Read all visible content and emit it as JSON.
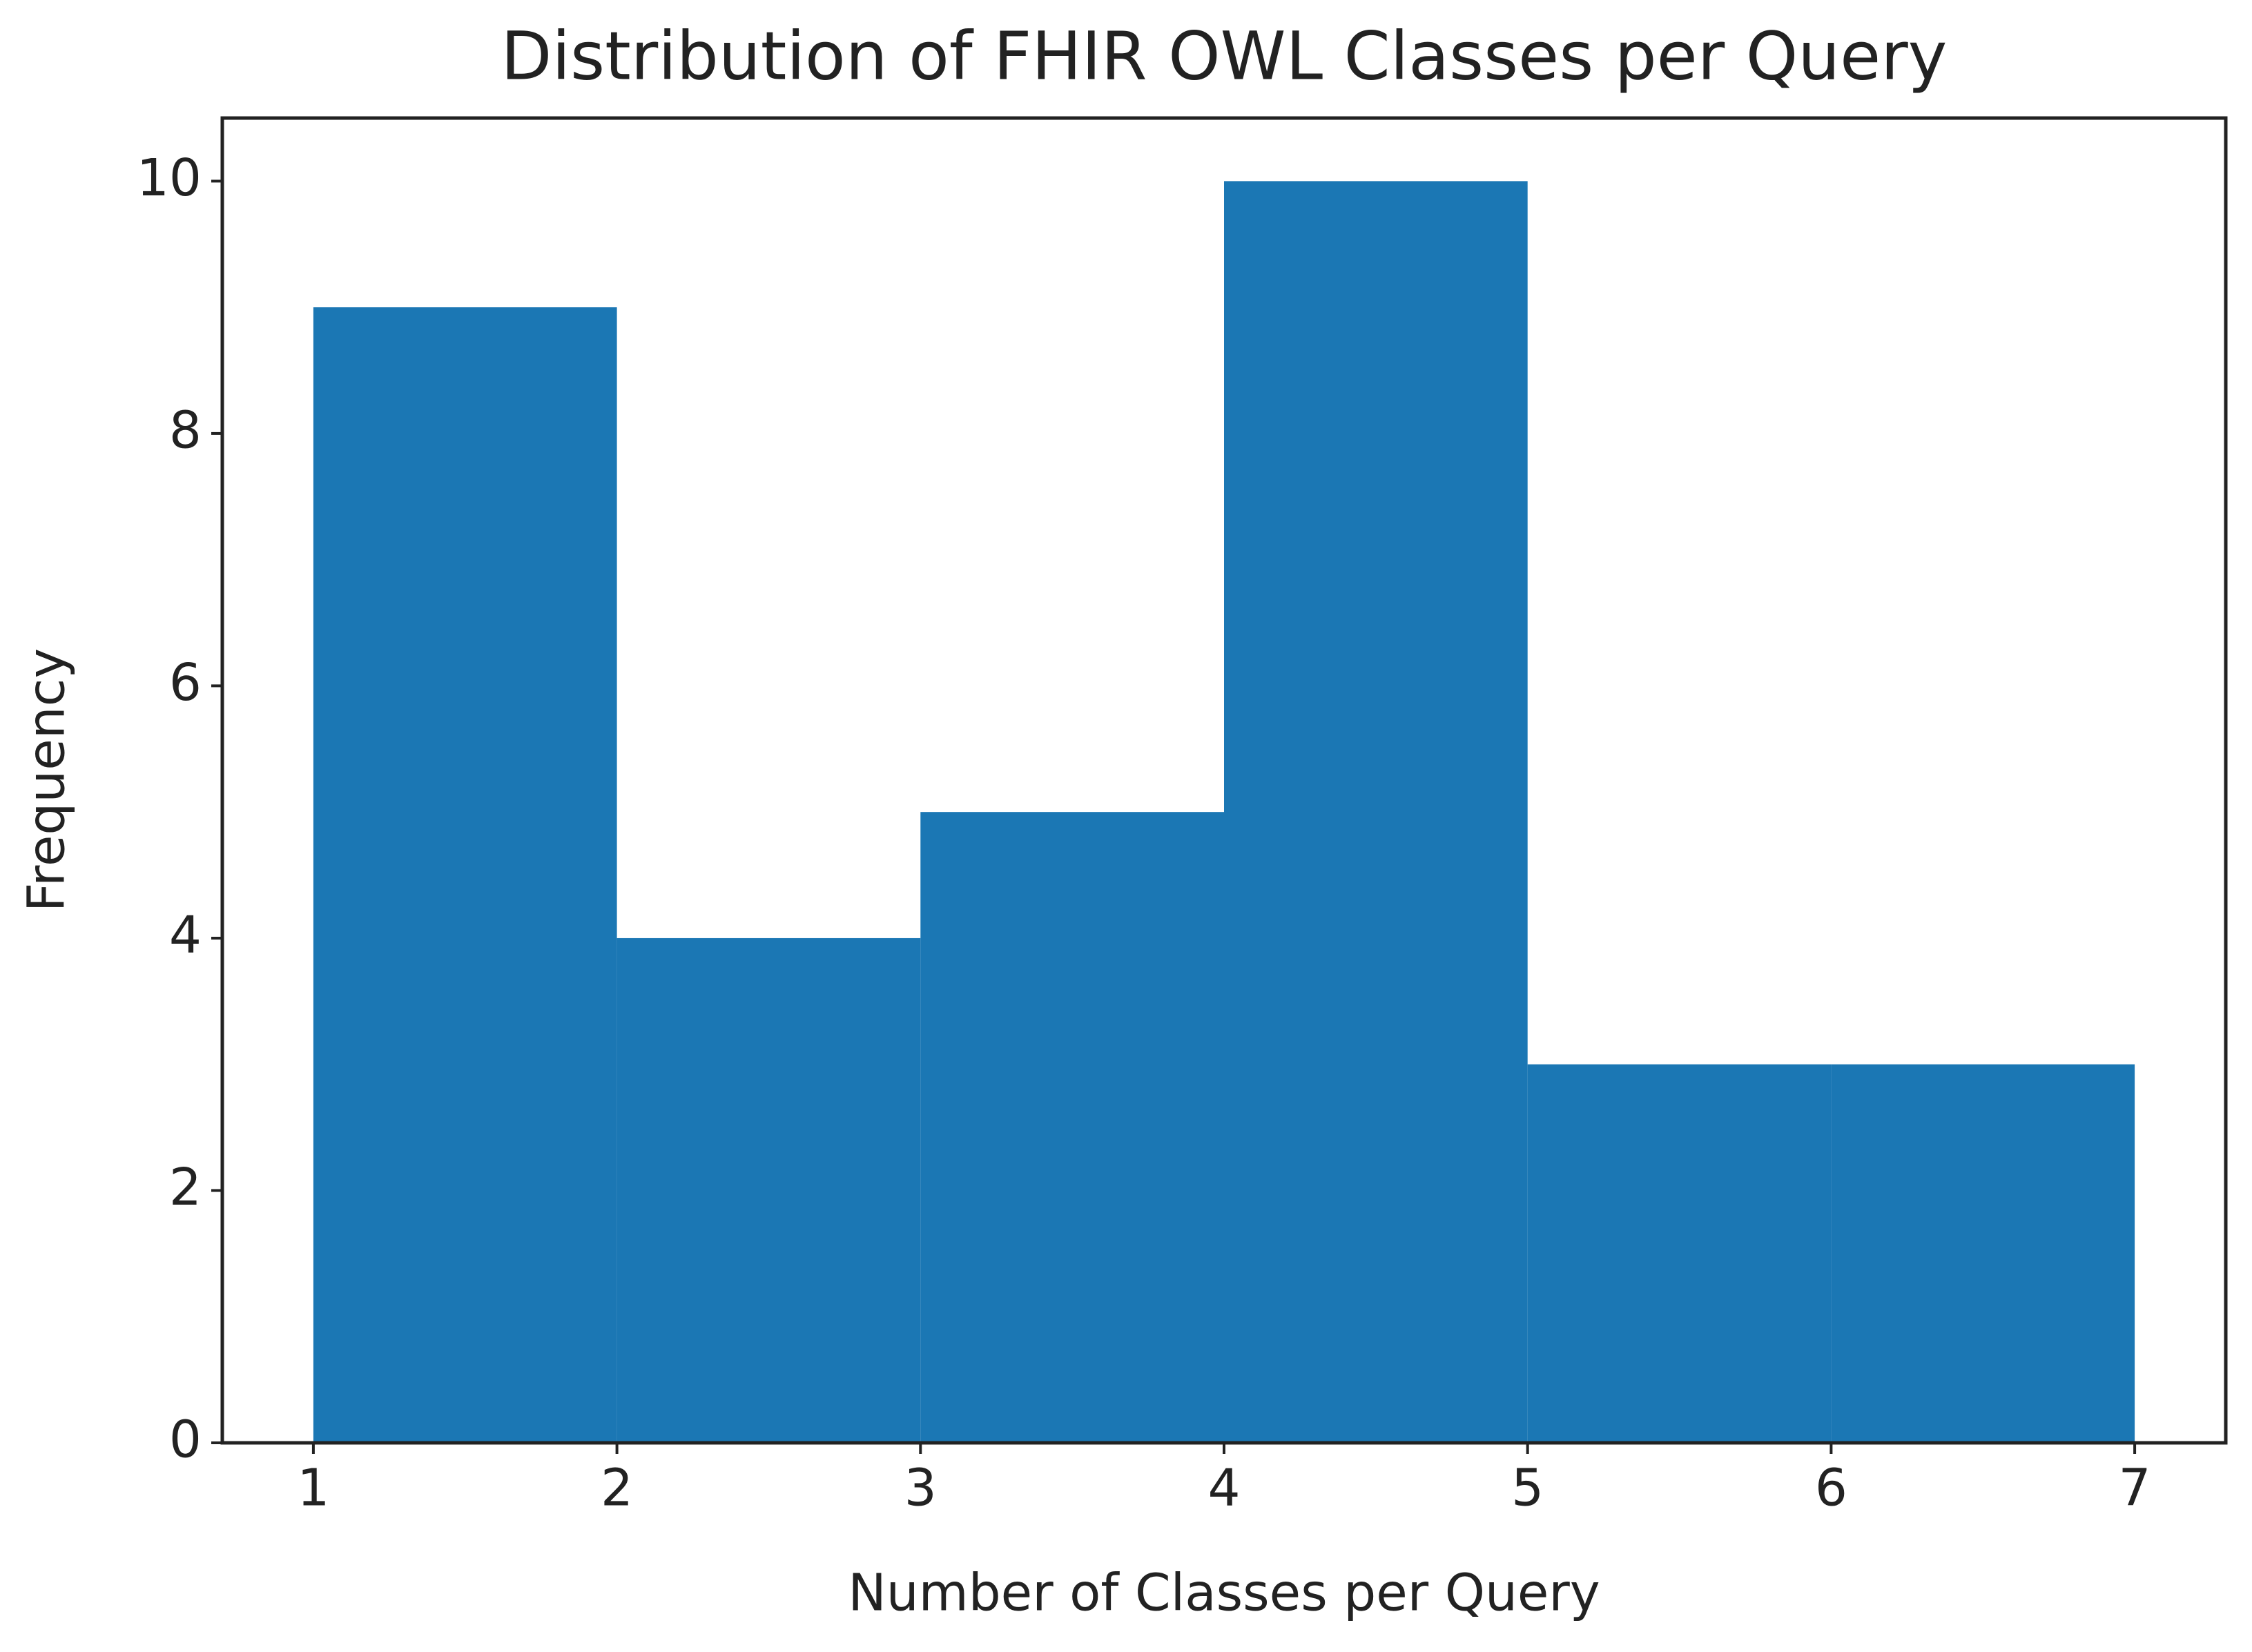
{
  "chart_data": {
    "type": "histogram",
    "title": "Distribution of FHIR OWL Classes per Query",
    "x_label": "Number of Classes per Query",
    "y_label": "Frequency",
    "bins": [
      1,
      2,
      3,
      4,
      5,
      6,
      7
    ],
    "counts": [
      9,
      4,
      5,
      10,
      3,
      3
    ],
    "color": "#1b77b4",
    "xlim": [
      0.7,
      7.3
    ],
    "ylim": [
      0,
      10.5
    ],
    "xticks": [
      1,
      2,
      3,
      4,
      5,
      6,
      7
    ],
    "yticks": [
      0,
      2,
      4,
      6,
      8,
      10
    ]
  }
}
